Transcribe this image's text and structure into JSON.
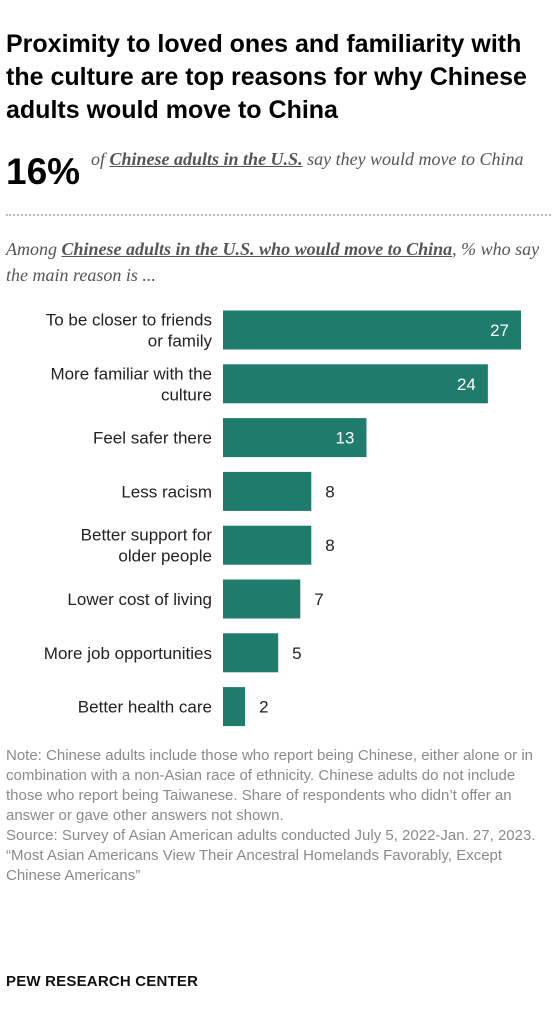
{
  "title": "Proximity to loved ones and familiarity with the culture are top reasons for why Chinese adults would move to China",
  "headline_stat": {
    "value": "16%",
    "prefix": "of",
    "emphasis": "Chinese adults in the U.S.",
    "suffix": "say they would move to China"
  },
  "subtitle": {
    "prefix": "Among",
    "emphasis": "Chinese adults in the U.S. who would move to China",
    "suffix": ", % who say the main reason is ..."
  },
  "colors": {
    "bar": "#1f7b6b",
    "label_inside": "#ffffff",
    "label_outside": "#222222"
  },
  "chart_data": {
    "type": "bar",
    "orientation": "horizontal",
    "categories": [
      "To be closer to friends or family",
      "More familiar with the culture",
      "Feel safer there",
      "Less racism",
      "Better support for older people",
      "Lower cost of living",
      "More job opportunities",
      "Better health care"
    ],
    "category_lines": [
      [
        "To be closer to friends",
        "or family"
      ],
      [
        "More familiar with the",
        "culture"
      ],
      [
        "Feel safer there"
      ],
      [
        "Less racism"
      ],
      [
        "Better support for",
        "older people"
      ],
      [
        "Lower cost of living"
      ],
      [
        "More job opportunities"
      ],
      [
        "Better health care"
      ]
    ],
    "values": [
      27,
      24,
      13,
      8,
      8,
      7,
      5,
      2
    ],
    "xlim": [
      0,
      27
    ],
    "grid": false,
    "legend": "none"
  },
  "notes": {
    "note": "Note: Chinese adults include those who report being Chinese, either alone or in combination with a non-Asian race of ethnicity. Chinese adults do not include those who report being Taiwanese. Share of respondents who didn’t offer an answer or gave other answers not shown.",
    "source": "Source: Survey of Asian American adults conducted July 5, 2022-Jan. 27, 2023.",
    "report": "“Most Asian Americans View Their Ancestral Homelands Favorably, Except Chinese Americans”"
  },
  "footer": "PEW RESEARCH CENTER"
}
